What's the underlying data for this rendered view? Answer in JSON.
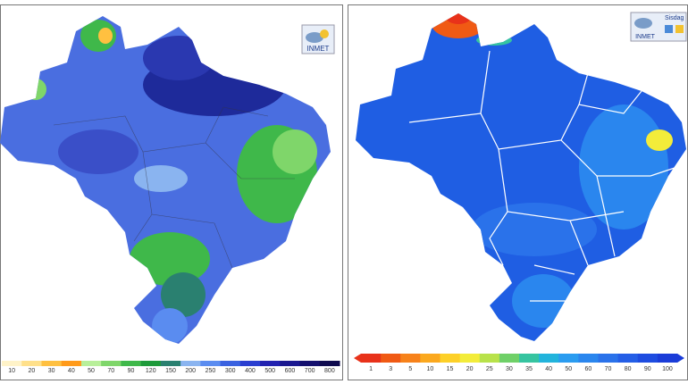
{
  "left_panel": {
    "logo": "INMET",
    "legend": {
      "labels": [
        "10",
        "20",
        "30",
        "40",
        "50",
        "70",
        "90",
        "120",
        "150",
        "200",
        "250",
        "300",
        "400",
        "500",
        "600",
        "700",
        "800"
      ],
      "colors": [
        "#fff3c8",
        "#ffe08a",
        "#ffc040",
        "#ff9a1a",
        "#b8ef9a",
        "#7fd66a",
        "#3fb84a",
        "#1e9a3a",
        "#2a8070",
        "#8ab4f0",
        "#5a8cf0",
        "#3a62e0",
        "#2a3fd0",
        "#2222b0",
        "#1a1890",
        "#14106e",
        "#0e0a4e"
      ]
    }
  },
  "right_panel": {
    "logo": "INMET",
    "logo_product": "Sisdag",
    "legend": {
      "labels": [
        "1",
        "3",
        "5",
        "10",
        "15",
        "20",
        "25",
        "30",
        "35",
        "40",
        "50",
        "60",
        "70",
        "80",
        "90",
        "100"
      ],
      "colors": [
        "#e8321a",
        "#f05a14",
        "#f7821a",
        "#fba81e",
        "#fdd028",
        "#f3ec3a",
        "#b8e24a",
        "#6fd068",
        "#36c4a0",
        "#22b4dc",
        "#2a9cf0",
        "#2a86ee",
        "#2a72ea",
        "#245ee6",
        "#1e4ce0",
        "#1a3cd8"
      ]
    }
  }
}
